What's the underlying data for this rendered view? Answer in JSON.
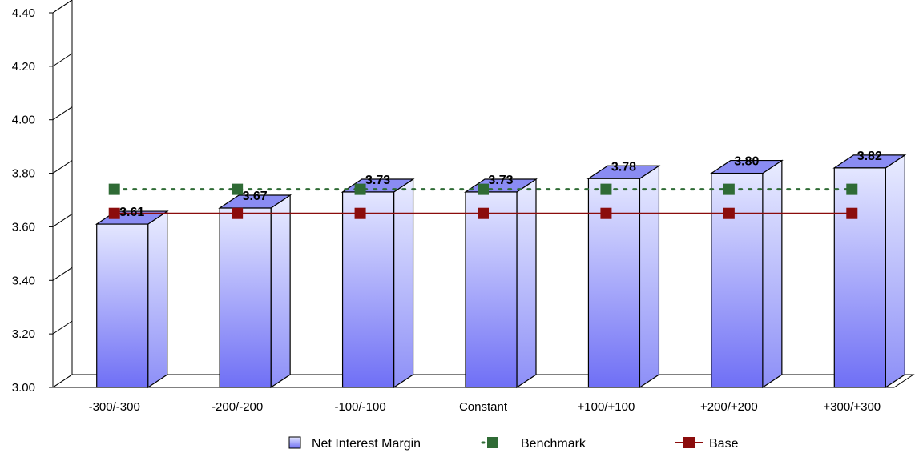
{
  "chart_data": {
    "type": "bar",
    "title": "",
    "xlabel": "",
    "ylabel": "",
    "categories": [
      "-300/-300",
      "-200/-200",
      "-100/-100",
      "Constant",
      "+100/+100",
      "+200/+200",
      "+300/+300"
    ],
    "series": [
      {
        "name": "Net Interest Margin",
        "kind": "bar",
        "values": [
          3.61,
          3.67,
          3.73,
          3.73,
          3.78,
          3.8,
          3.82
        ],
        "labels": [
          "3.61",
          "3.67",
          "3.73",
          "3.73",
          "3.78",
          "3.80",
          "3.82"
        ],
        "color": "#9999ff"
      },
      {
        "name": "Benchmark",
        "kind": "line-dotted",
        "values": [
          3.74,
          3.74,
          3.74,
          3.74,
          3.74,
          3.74,
          3.74
        ],
        "color": "#2f6b35"
      },
      {
        "name": "Base",
        "kind": "line",
        "values": [
          3.65,
          3.65,
          3.65,
          3.65,
          3.65,
          3.65,
          3.65
        ],
        "color": "#8b0c0c"
      }
    ],
    "ylim": [
      3.0,
      4.4
    ],
    "yticks": [
      "3.00",
      "3.20",
      "3.40",
      "3.60",
      "3.80",
      "4.00",
      "4.20",
      "4.40"
    ],
    "grid": false,
    "legend_position": "bottom"
  }
}
